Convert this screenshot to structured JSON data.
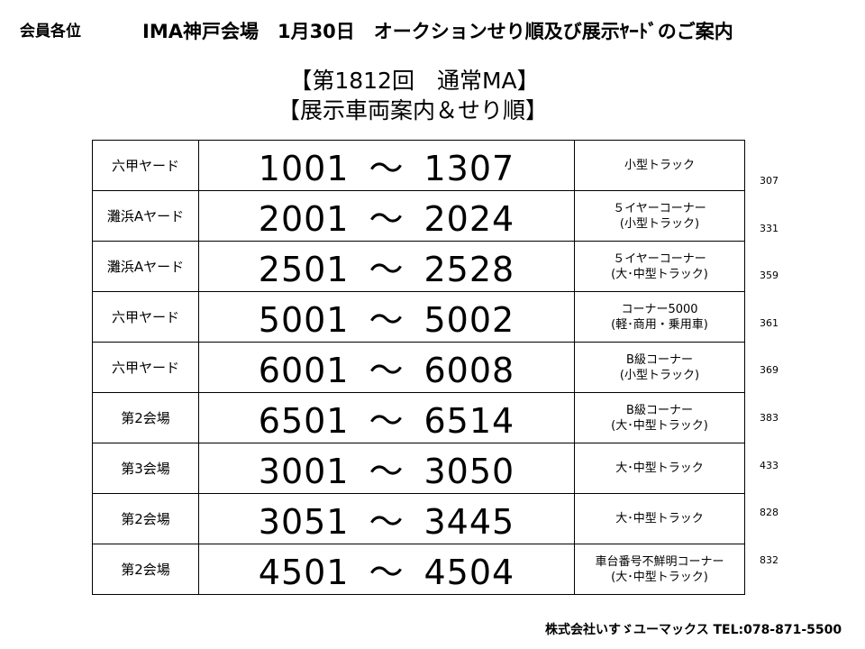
{
  "header": {
    "corner_label": "会員各位",
    "title": "IMA神戸会場　1月30日　オークションせり順及び展示ﾔｰﾄﾞのご案内",
    "subtitle_line1": "【第1812回　通常MA】",
    "subtitle_line2": "【展示車両案内＆せり順】"
  },
  "rows": [
    {
      "yard": "六甲ヤード",
      "start": "1001",
      "sep": "～",
      "end": "1307",
      "category": [
        "小型トラック"
      ],
      "count": "307"
    },
    {
      "yard": "灘浜Aヤード",
      "start": "2001",
      "sep": "～",
      "end": "2024",
      "category": [
        "５イヤーコーナー",
        "(小型トラック)"
      ],
      "count": "331"
    },
    {
      "yard": "灘浜Aヤード",
      "start": "2501",
      "sep": "～",
      "end": "2528",
      "category": [
        "５イヤーコーナー",
        "(大･中型トラック)"
      ],
      "count": "359"
    },
    {
      "yard": "六甲ヤード",
      "start": "5001",
      "sep": "～",
      "end": "5002",
      "category": [
        "コーナー5000",
        "(軽･商用・乗用車)"
      ],
      "count": "361"
    },
    {
      "yard": "六甲ヤード",
      "start": "6001",
      "sep": "～",
      "end": "6008",
      "category": [
        "B級コーナー",
        "(小型トラック)"
      ],
      "count": "369"
    },
    {
      "yard": "第2会場",
      "start": "6501",
      "sep": "～",
      "end": "6514",
      "category": [
        "B級コーナー",
        "(大･中型トラック)"
      ],
      "count": "383"
    },
    {
      "yard": "第3会場",
      "start": "3001",
      "sep": "～",
      "end": "3050",
      "category": [
        "大･中型トラック"
      ],
      "count": "433"
    },
    {
      "yard": "第2会場",
      "start": "3051",
      "sep": "～",
      "end": "3445",
      "category": [
        "大･中型トラック"
      ],
      "count": "828"
    },
    {
      "yard": "第2会場",
      "start": "4501",
      "sep": "～",
      "end": "4504",
      "category": [
        "車台番号不鮮明コーナー",
        "(大･中型トラック)"
      ],
      "count": "832"
    }
  ],
  "footer": {
    "company": "株式会社いすゞユーマックス  TEL:078-871-5500"
  }
}
